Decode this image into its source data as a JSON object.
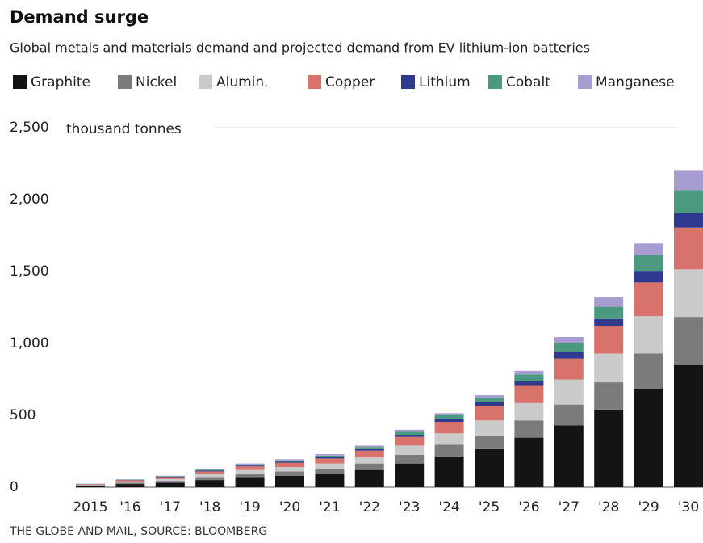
{
  "chart_data": {
    "type": "stacked_bar",
    "title": "Demand surge",
    "subtitle": "Global metals and materials demand and projected demand from EV lithium-ion batteries",
    "y_label": "thousand tonnes",
    "source": "THE GLOBE AND MAIL,  SOURCE: BLOOMBERG",
    "categories": [
      "2015",
      "'16",
      "'17",
      "'18",
      "'19",
      "'20",
      "'21",
      "'22",
      "'23",
      "'24",
      "'25",
      "'26",
      "'27",
      "'28",
      "'29",
      "'30"
    ],
    "series": [
      {
        "name": "Graphite",
        "color": "#141414",
        "values": [
          10,
          22,
          32,
          50,
          70,
          80,
          95,
          120,
          165,
          215,
          265,
          345,
          430,
          540,
          680,
          850
        ]
      },
      {
        "name": "Nickel",
        "color": "#7b7b7b",
        "values": [
          4,
          9,
          12,
          20,
          25,
          30,
          35,
          45,
          60,
          80,
          95,
          120,
          145,
          190,
          250,
          335
        ]
      },
      {
        "name": "Alumin.",
        "color": "#cacaca",
        "values": [
          4,
          9,
          13,
          20,
          25,
          30,
          35,
          45,
          65,
          80,
          105,
          120,
          175,
          200,
          260,
          330
        ]
      },
      {
        "name": "Copper",
        "color": "#d8736b",
        "values": [
          4,
          9,
          13,
          20,
          25,
          30,
          35,
          45,
          60,
          80,
          100,
          120,
          145,
          190,
          235,
          290
        ]
      },
      {
        "name": "Lithium",
        "color": "#2f3a8f",
        "values": [
          1,
          2,
          3,
          5,
          6,
          7,
          8,
          10,
          15,
          20,
          25,
          35,
          45,
          50,
          80,
          100
        ]
      },
      {
        "name": "Cobalt",
        "color": "#4b9a7f",
        "values": [
          1,
          2,
          4,
          6,
          8,
          10,
          12,
          15,
          20,
          25,
          30,
          45,
          65,
          85,
          110,
          160
        ]
      },
      {
        "name": "Manganese",
        "color": "#a89dd1",
        "values": [
          1,
          2,
          3,
          4,
          6,
          8,
          10,
          10,
          15,
          15,
          20,
          25,
          40,
          65,
          80,
          135
        ]
      }
    ],
    "ylim": [
      0,
      2500
    ],
    "yticks": [
      0,
      500,
      {
        "value": 1000,
        "label": "1,000"
      },
      {
        "value": 1500,
        "label": "1,500"
      },
      {
        "value": 2000,
        "label": "2,000"
      },
      {
        "value": 2500,
        "label": "2,500"
      }
    ],
    "legend": "top"
  }
}
